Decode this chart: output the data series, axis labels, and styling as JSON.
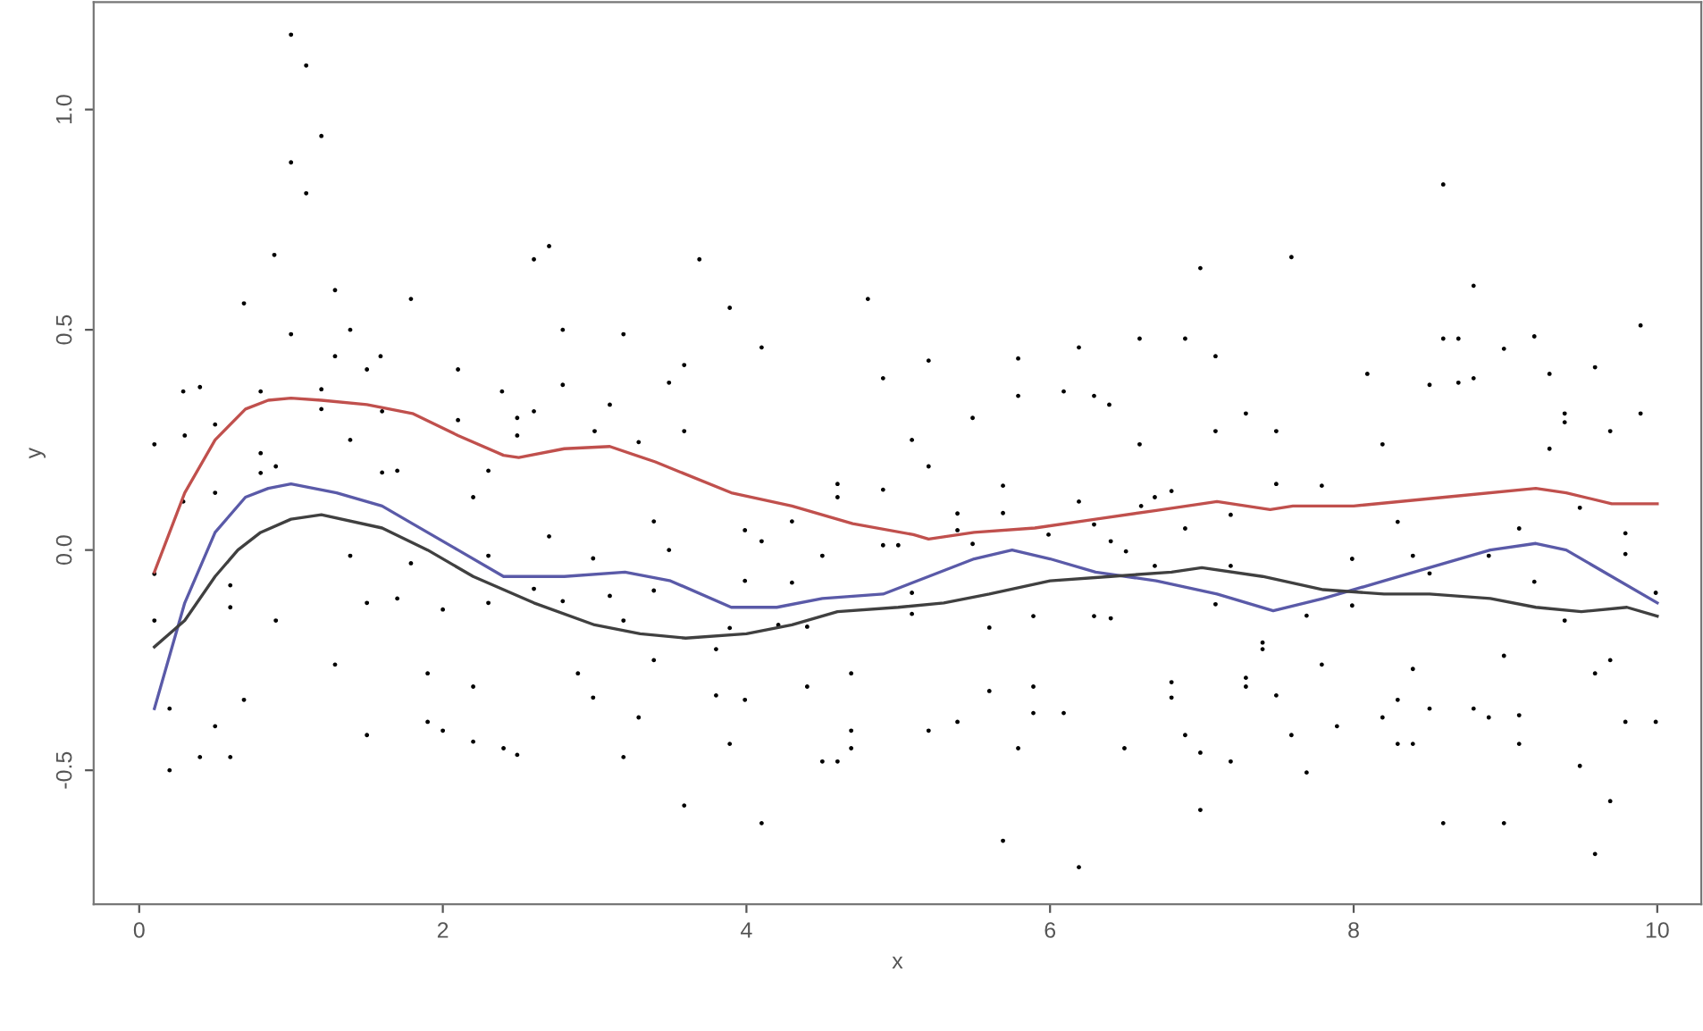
{
  "chart_data": {
    "type": "scatter",
    "xlabel": "x",
    "ylabel": "y",
    "xlim": [
      -0.3,
      10.29
    ],
    "ylim": [
      -0.804,
      1.244
    ],
    "xticks": [
      0,
      2,
      4,
      6,
      8,
      10
    ],
    "yticks": [
      {
        "value": -0.5,
        "label": "-0.5"
      },
      {
        "value": 0,
        "label": "0.0"
      },
      {
        "value": 0.5,
        "label": "0.5"
      },
      {
        "value": 1,
        "label": "1.0"
      }
    ],
    "grid": false,
    "series": [
      {
        "marker": "circle",
        "color": "#000000",
        "x": [
          1.0,
          1.1,
          1.2,
          1.0,
          1.1,
          0.89,
          0.69,
          1.29,
          1.79,
          2.6,
          2.7,
          1.0,
          1.39,
          2.79,
          1.29,
          1.59,
          1.5,
          2.1,
          0.29,
          0.4,
          0.8,
          1.2,
          2.39,
          2.79,
          1.2,
          1.6,
          0.5,
          2.1,
          2.49,
          2.6,
          3.1,
          0.1,
          0.3,
          1.39,
          2.49,
          3.0,
          0.8,
          3.69,
          3.89,
          4.8,
          3.19,
          3.59,
          3.49,
          4.1,
          4.9,
          5.2,
          5.79,
          6.19,
          6.59,
          5.79,
          6.09,
          6.29,
          6.39,
          3.59,
          3.29,
          5.49,
          5.09,
          6.59,
          8.59,
          7.59,
          6.99,
          8.79,
          6.89,
          8.59,
          8.69,
          9.89,
          9.19,
          8.99,
          7.09,
          8.09,
          8.5,
          8.69,
          8.79,
          9.29,
          9.59,
          7.29,
          7.09,
          7.49,
          9.39,
          9.39,
          9.89,
          9.69,
          8.19,
          9.29,
          0.1,
          0.1,
          0.2,
          0.2,
          0.4,
          0.5,
          0.6,
          0.69,
          0.6,
          0.6,
          0.9,
          1.29,
          1.39,
          1.5,
          1.7,
          1.79,
          1.9,
          1.9,
          2.0,
          1.5,
          2.0,
          2.2,
          2.2,
          2.3,
          2.3,
          2.4,
          2.49,
          2.6,
          2.7,
          2.79,
          2.89,
          2.99,
          2.99,
          3.1,
          0.29,
          0.5,
          0.8,
          0.9,
          1.6,
          1.7,
          2.2,
          2.3,
          3.39,
          3.49,
          3.99,
          4.1,
          4.3,
          4.5,
          4.6,
          4.6,
          4.9,
          4.9,
          5.0,
          5.2,
          5.39,
          5.39,
          5.49,
          5.69,
          5.69,
          5.99,
          6.19,
          6.29,
          6.4,
          6.5,
          6.6,
          3.39,
          3.19,
          3.99,
          4.3,
          3.89,
          4.21,
          4.4,
          5.09,
          5.09,
          5.6,
          5.89,
          6.29,
          6.4,
          3.39,
          3.8,
          3.8,
          3.99,
          3.29,
          3.19,
          3.89,
          4.4,
          4.69,
          4.69,
          4.69,
          4.5,
          4.6,
          3.59,
          4.1,
          5.2,
          5.39,
          5.6,
          5.89,
          5.89,
          6.09,
          5.79,
          6.49,
          5.69,
          6.19,
          6.69,
          6.8,
          7.19,
          7.49,
          7.79,
          8.29,
          9.09,
          9.49,
          9.79,
          9.79,
          6.89,
          6.69,
          7.19,
          7.99,
          8.39,
          8.5,
          8.89,
          9.19,
          7.09,
          7.69,
          7.99,
          9.39,
          9.99,
          7.4,
          7.4,
          7.79,
          6.8,
          6.8,
          7.29,
          7.29,
          7.49,
          8.39,
          8.29,
          8.99,
          9.59,
          9.69,
          6.89,
          6.99,
          7.19,
          7.59,
          7.69,
          7.89,
          8.19,
          8.29,
          8.39,
          8.5,
          8.79,
          8.89,
          9.09,
          9.09,
          9.79,
          9.99,
          9.49,
          6.99,
          8.59,
          8.99,
          9.69,
          9.59
        ],
        "values": [
          1.17,
          1.1,
          0.94,
          0.88,
          0.81,
          0.67,
          0.56,
          0.59,
          0.57,
          0.66,
          0.69,
          0.49,
          0.5,
          0.5,
          0.44,
          0.44,
          0.41,
          0.41,
          0.36,
          0.37,
          0.36,
          0.365,
          0.36,
          0.375,
          0.32,
          0.315,
          0.285,
          0.295,
          0.3,
          0.315,
          0.33,
          0.24,
          0.26,
          0.25,
          0.26,
          0.27,
          0.22,
          0.66,
          0.55,
          0.57,
          0.49,
          0.42,
          0.38,
          0.46,
          0.39,
          0.43,
          0.435,
          0.46,
          0.48,
          0.35,
          0.36,
          0.35,
          0.33,
          0.27,
          0.245,
          0.3,
          0.25,
          0.24,
          0.83,
          0.665,
          0.64,
          0.6,
          0.48,
          0.48,
          0.48,
          0.51,
          0.485,
          0.457,
          0.44,
          0.4,
          0.375,
          0.38,
          0.39,
          0.4,
          0.415,
          0.31,
          0.27,
          0.27,
          0.31,
          0.29,
          0.31,
          0.27,
          0.24,
          0.23,
          -0.054,
          -0.16,
          -0.36,
          -0.5,
          -0.47,
          -0.4,
          -0.47,
          -0.34,
          -0.08,
          -0.13,
          -0.16,
          -0.26,
          -0.013,
          -0.12,
          -0.11,
          -0.03,
          -0.28,
          -0.39,
          -0.41,
          -0.42,
          -0.135,
          -0.31,
          -0.435,
          -0.12,
          -0.013,
          -0.45,
          -0.465,
          -0.088,
          0.031,
          -0.116,
          -0.28,
          -0.335,
          -0.019,
          -0.104,
          0.11,
          0.13,
          0.175,
          0.19,
          0.176,
          0.18,
          0.12,
          0.18,
          0.065,
          0.0,
          0.045,
          0.02,
          0.065,
          -0.013,
          0.15,
          0.12,
          0.137,
          0.011,
          0.011,
          0.19,
          0.083,
          0.045,
          0.014,
          0.146,
          0.084,
          0.035,
          0.11,
          0.058,
          0.02,
          -0.003,
          0.1,
          -0.092,
          -0.16,
          -0.07,
          -0.074,
          -0.177,
          -0.17,
          -0.174,
          -0.097,
          -0.145,
          -0.176,
          -0.15,
          -0.15,
          -0.155,
          -0.25,
          -0.225,
          -0.33,
          -0.34,
          -0.38,
          -0.47,
          -0.44,
          -0.31,
          -0.28,
          -0.41,
          -0.45,
          -0.48,
          -0.48,
          -0.58,
          -0.62,
          -0.41,
          -0.39,
          -0.32,
          -0.31,
          -0.37,
          -0.37,
          -0.45,
          -0.45,
          -0.66,
          -0.72,
          0.12,
          0.134,
          0.08,
          0.15,
          0.146,
          0.064,
          0.049,
          0.096,
          0.038,
          -0.009,
          0.049,
          -0.036,
          -0.036,
          -0.02,
          -0.013,
          -0.053,
          -0.013,
          -0.072,
          -0.123,
          -0.149,
          -0.126,
          -0.16,
          -0.097,
          -0.21,
          -0.225,
          -0.26,
          -0.3,
          -0.335,
          -0.29,
          -0.31,
          -0.33,
          -0.27,
          -0.34,
          -0.24,
          -0.28,
          -0.25,
          -0.42,
          -0.46,
          -0.48,
          -0.42,
          -0.505,
          -0.4,
          -0.38,
          -0.44,
          -0.44,
          -0.36,
          -0.36,
          -0.38,
          -0.375,
          -0.44,
          -0.39,
          -0.39,
          -0.49,
          -0.59,
          -0.62,
          -0.62,
          -0.57,
          -0.69
        ]
      },
      {
        "type": "line",
        "marker": "none",
        "line_style": "solid",
        "color": "#c0504d",
        "x": [
          0.1,
          0.3,
          0.5,
          0.7,
          0.85,
          1.0,
          1.2,
          1.5,
          1.8,
          2.1,
          2.4,
          2.5,
          2.8,
          3.1,
          3.4,
          3.9,
          4.3,
          4.7,
          5.1,
          5.2,
          5.5,
          5.9,
          6.3,
          6.7,
          7.1,
          7.45,
          7.6,
          8.0,
          8.6,
          9.2,
          9.4,
          9.7,
          10.0
        ],
        "values": [
          -0.05,
          0.13,
          0.25,
          0.32,
          0.34,
          0.345,
          0.34,
          0.33,
          0.31,
          0.26,
          0.215,
          0.21,
          0.23,
          0.235,
          0.2,
          0.13,
          0.1,
          0.06,
          0.035,
          0.025,
          0.04,
          0.05,
          0.07,
          0.09,
          0.11,
          0.092,
          0.1,
          0.1,
          0.12,
          0.14,
          0.13,
          0.105,
          0.105
        ]
      },
      {
        "type": "line",
        "marker": "none",
        "line_style": "solid",
        "color": "#5a5aa8",
        "x": [
          0.1,
          0.3,
          0.5,
          0.7,
          0.85,
          1.0,
          1.3,
          1.6,
          1.8,
          2.1,
          2.4,
          2.8,
          3.2,
          3.5,
          3.9,
          4.2,
          4.5,
          4.9,
          5.2,
          5.5,
          5.75,
          6.0,
          6.3,
          6.7,
          7.1,
          7.47,
          7.8,
          8.2,
          8.6,
          8.9,
          9.2,
          9.4,
          9.7,
          10.0
        ],
        "values": [
          -0.36,
          -0.12,
          0.04,
          0.12,
          0.14,
          0.15,
          0.13,
          0.1,
          0.06,
          0.0,
          -0.06,
          -0.06,
          -0.05,
          -0.07,
          -0.13,
          -0.13,
          -0.11,
          -0.1,
          -0.06,
          -0.02,
          0.0,
          -0.02,
          -0.05,
          -0.07,
          -0.1,
          -0.138,
          -0.11,
          -0.07,
          -0.03,
          0.0,
          0.015,
          0.0,
          -0.06,
          -0.12
        ]
      },
      {
        "type": "line",
        "marker": "none",
        "line_style": "solid",
        "color": "#404040",
        "x": [
          0.1,
          0.3,
          0.5,
          0.65,
          0.8,
          1.0,
          1.2,
          1.6,
          1.9,
          2.2,
          2.6,
          3.0,
          3.3,
          3.6,
          4.0,
          4.3,
          4.6,
          5.0,
          5.3,
          5.6,
          6.0,
          6.4,
          6.8,
          7.0,
          7.4,
          7.8,
          8.2,
          8.5,
          8.9,
          9.2,
          9.5,
          9.8,
          10.0
        ],
        "values": [
          -0.22,
          -0.16,
          -0.06,
          0.0,
          0.04,
          0.07,
          0.08,
          0.05,
          0.0,
          -0.06,
          -0.12,
          -0.17,
          -0.19,
          -0.2,
          -0.19,
          -0.17,
          -0.14,
          -0.13,
          -0.12,
          -0.1,
          -0.07,
          -0.06,
          -0.05,
          -0.04,
          -0.06,
          -0.09,
          -0.1,
          -0.1,
          -0.11,
          -0.13,
          -0.14,
          -0.13,
          -0.15
        ]
      }
    ]
  }
}
